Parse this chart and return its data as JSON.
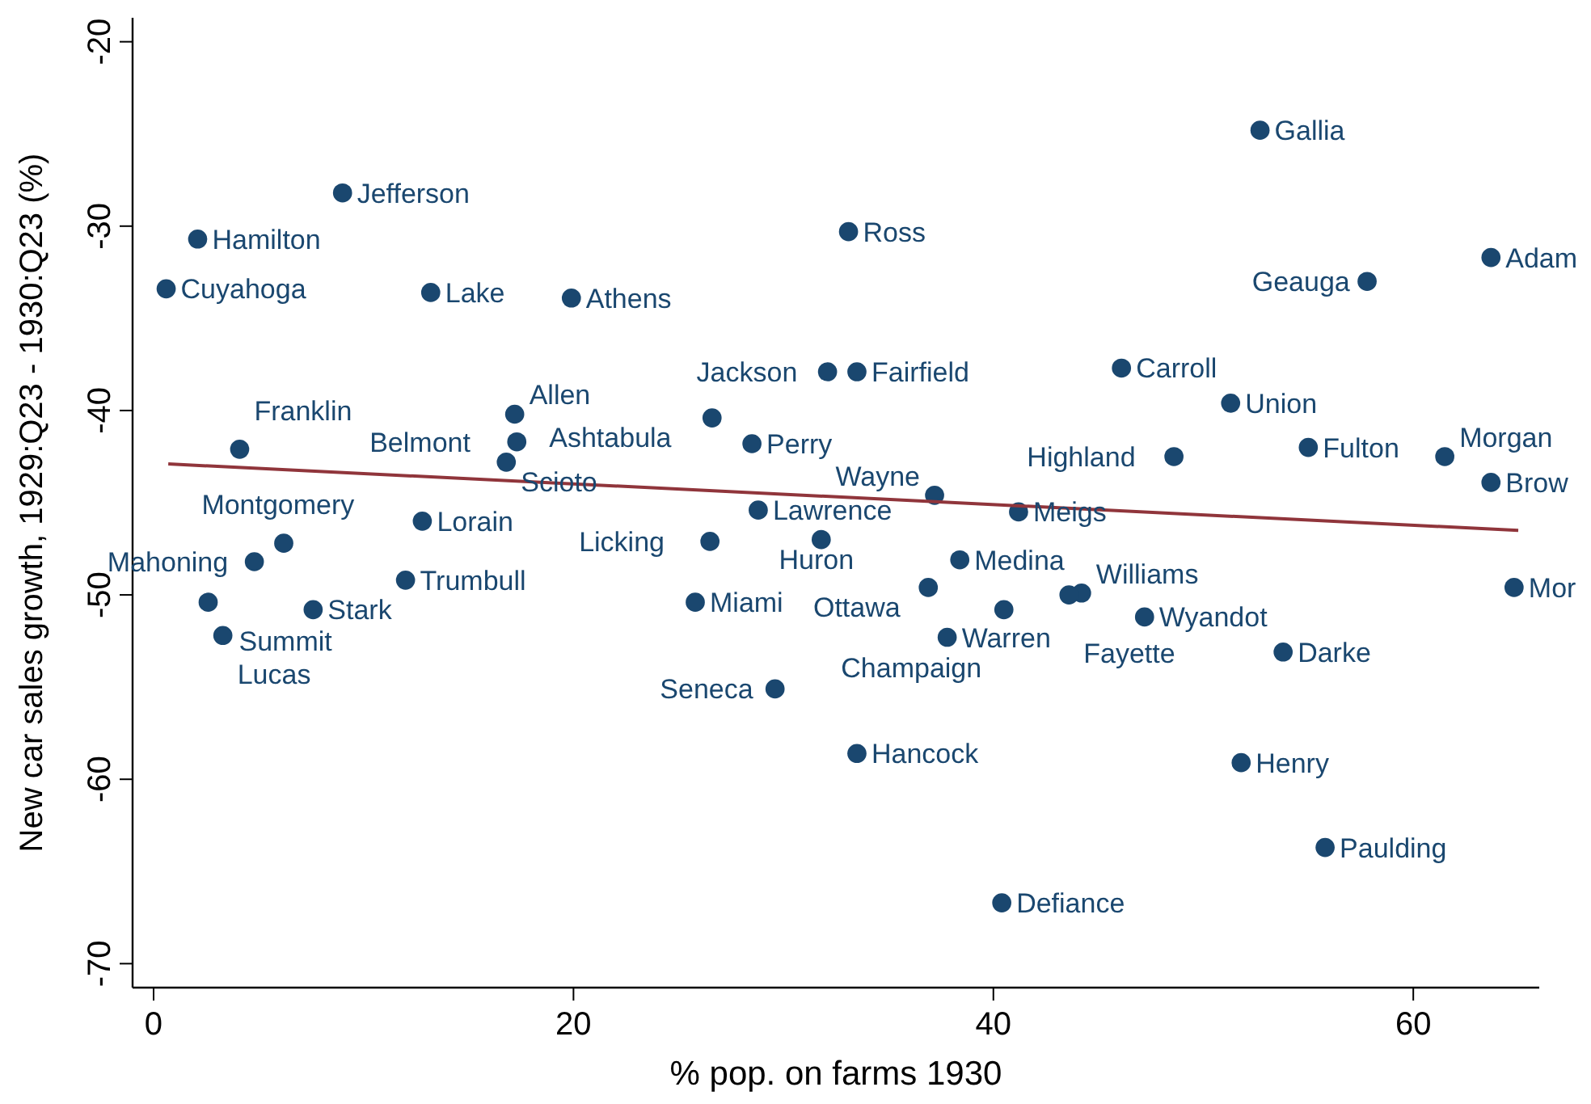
{
  "chart_data": {
    "type": "scatter",
    "xlabel": "% pop. on farms 1930",
    "ylabel": "New car sales growth, 1929:Q23 - 1930:Q23 (%)",
    "xlim": [
      -1,
      66
    ],
    "ylim": [
      -71.3,
      -18.7
    ],
    "xticks": [
      0,
      20,
      40,
      60
    ],
    "yticks": [
      -20,
      -30,
      -40,
      -50,
      -60,
      -70
    ],
    "grid": false,
    "marker": "circle",
    "series": [
      {
        "color": "#1a476f",
        "x": [
          52.7,
          9.0,
          2.1,
          33.1,
          63.7,
          0.6,
          13.2,
          19.9,
          57.8,
          32.1,
          33.5,
          46.1,
          51.3,
          17.2,
          26.6,
          17.3,
          28.5,
          4.1,
          16.8,
          48.6,
          55.0,
          61.5,
          63.7,
          37.2,
          41.2,
          28.8,
          12.8,
          26.5,
          31.8,
          6.2,
          38.4,
          4.8,
          12.0,
          36.9,
          44.2,
          43.6,
          64.8,
          40.5,
          47.2,
          2.6,
          7.6,
          25.8,
          3.3,
          37.8,
          53.8,
          29.6,
          33.5,
          51.8,
          55.8,
          40.4
        ],
        "values": [
          -24.8,
          -28.2,
          -30.7,
          -30.3,
          -31.7,
          -33.4,
          -33.6,
          -33.9,
          -33.0,
          -37.9,
          -37.9,
          -37.7,
          -39.6,
          -40.2,
          -40.4,
          -41.7,
          -41.8,
          -42.1,
          -42.8,
          -42.5,
          -42.0,
          -42.5,
          -43.9,
          -44.6,
          -45.5,
          -45.4,
          -46.0,
          -47.1,
          -47.0,
          -47.2,
          -48.1,
          -48.2,
          -49.2,
          -49.6,
          -49.9,
          -50.0,
          -49.6,
          -50.8,
          -51.2,
          -50.4,
          -50.8,
          -50.4,
          -52.2,
          -52.3,
          -53.1,
          -55.1,
          -58.6,
          -59.1,
          -63.7,
          -66.7
        ]
      },
      {
        "type": "line",
        "marker": "none",
        "color": "#90353b",
        "x": [
          0.7,
          65
        ],
        "values": [
          -42.9,
          -46.5
        ]
      }
    ],
    "annotations": [
      {
        "text": "Gallia",
        "x": 52.7,
        "y": -24.8
      },
      {
        "text": "Jefferson",
        "x": 9.0,
        "y": -28.2
      },
      {
        "text": "Hamilton",
        "x": 2.1,
        "y": -30.7
      },
      {
        "text": "Ross",
        "x": 33.1,
        "y": -30.3
      },
      {
        "text": "Adam",
        "x": 63.7,
        "y": -31.7
      },
      {
        "text": "Cuyahoga",
        "x": 0.6,
        "y": -33.4
      },
      {
        "text": "Lake",
        "x": 13.2,
        "y": -33.6
      },
      {
        "text": "Athens",
        "x": 19.9,
        "y": -33.9
      },
      {
        "text": "Geauga",
        "x": 57.8,
        "y": -33.0
      },
      {
        "text": "Jackson",
        "x": 32.1,
        "y": -37.9
      },
      {
        "text": "Fairfield",
        "x": 33.5,
        "y": -37.9
      },
      {
        "text": "Carroll",
        "x": 46.1,
        "y": -37.7
      },
      {
        "text": "Union",
        "x": 51.3,
        "y": -39.6
      },
      {
        "text": "Allen",
        "x": 17.2,
        "y": -40.2
      },
      {
        "text": "Ashtabula",
        "x": 26.6,
        "y": -40.4
      },
      {
        "text": "Belmont",
        "x": 17.3,
        "y": -41.7
      },
      {
        "text": "Perry",
        "x": 28.5,
        "y": -41.8
      },
      {
        "text": "Franklin",
        "x": 4.1,
        "y": -42.1
      },
      {
        "text": "Scioto",
        "x": 16.8,
        "y": -42.8
      },
      {
        "text": "Highland",
        "x": 48.6,
        "y": -42.5
      },
      {
        "text": "Fulton",
        "x": 55.0,
        "y": -42.0
      },
      {
        "text": "Morgan",
        "x": 61.5,
        "y": -42.5
      },
      {
        "text": "Brow",
        "x": 63.7,
        "y": -43.9
      },
      {
        "text": "Wayne",
        "x": 37.2,
        "y": -44.6
      },
      {
        "text": "Meigs",
        "x": 41.2,
        "y": -45.5
      },
      {
        "text": "Lawrence",
        "x": 28.8,
        "y": -45.4
      },
      {
        "text": "Lorain",
        "x": 12.8,
        "y": -46.0
      },
      {
        "text": "Licking",
        "x": 26.5,
        "y": -47.1
      },
      {
        "text": "Huron",
        "x": 31.8,
        "y": -47.0
      },
      {
        "text": "Montgomery",
        "x": 6.2,
        "y": -47.2
      },
      {
        "text": "Medina",
        "x": 38.4,
        "y": -48.1
      },
      {
        "text": "Mahoning",
        "x": 4.8,
        "y": -48.2
      },
      {
        "text": "Trumbull",
        "x": 12.0,
        "y": -49.2
      },
      {
        "text": "Ottawa",
        "x": 36.9,
        "y": -49.6
      },
      {
        "text": "Williams",
        "x": 44.2,
        "y": -49.9
      },
      {
        "text": "Fayette",
        "x": 43.6,
        "y": -50.0
      },
      {
        "text": "Mor",
        "x": 64.8,
        "y": -49.6
      },
      {
        "text": "Champaign",
        "x": 40.5,
        "y": -50.8
      },
      {
        "text": "Wyandot",
        "x": 47.2,
        "y": -51.2
      },
      {
        "text": "Summit",
        "x": 2.6,
        "y": -50.4
      },
      {
        "text": "Stark",
        "x": 7.6,
        "y": -50.8
      },
      {
        "text": "Miami",
        "x": 25.8,
        "y": -50.4
      },
      {
        "text": "Lucas",
        "x": 3.3,
        "y": -52.2
      },
      {
        "text": "Warren",
        "x": 37.8,
        "y": -52.3
      },
      {
        "text": "Darke",
        "x": 53.8,
        "y": -53.1
      },
      {
        "text": "Seneca",
        "x": 29.6,
        "y": -55.1
      },
      {
        "text": "Hancock",
        "x": 33.5,
        "y": -58.6
      },
      {
        "text": "Henry",
        "x": 51.8,
        "y": -59.1
      },
      {
        "text": "Paulding",
        "x": 55.8,
        "y": -63.7
      },
      {
        "text": "Defiance",
        "x": 40.4,
        "y": -66.7
      }
    ]
  }
}
